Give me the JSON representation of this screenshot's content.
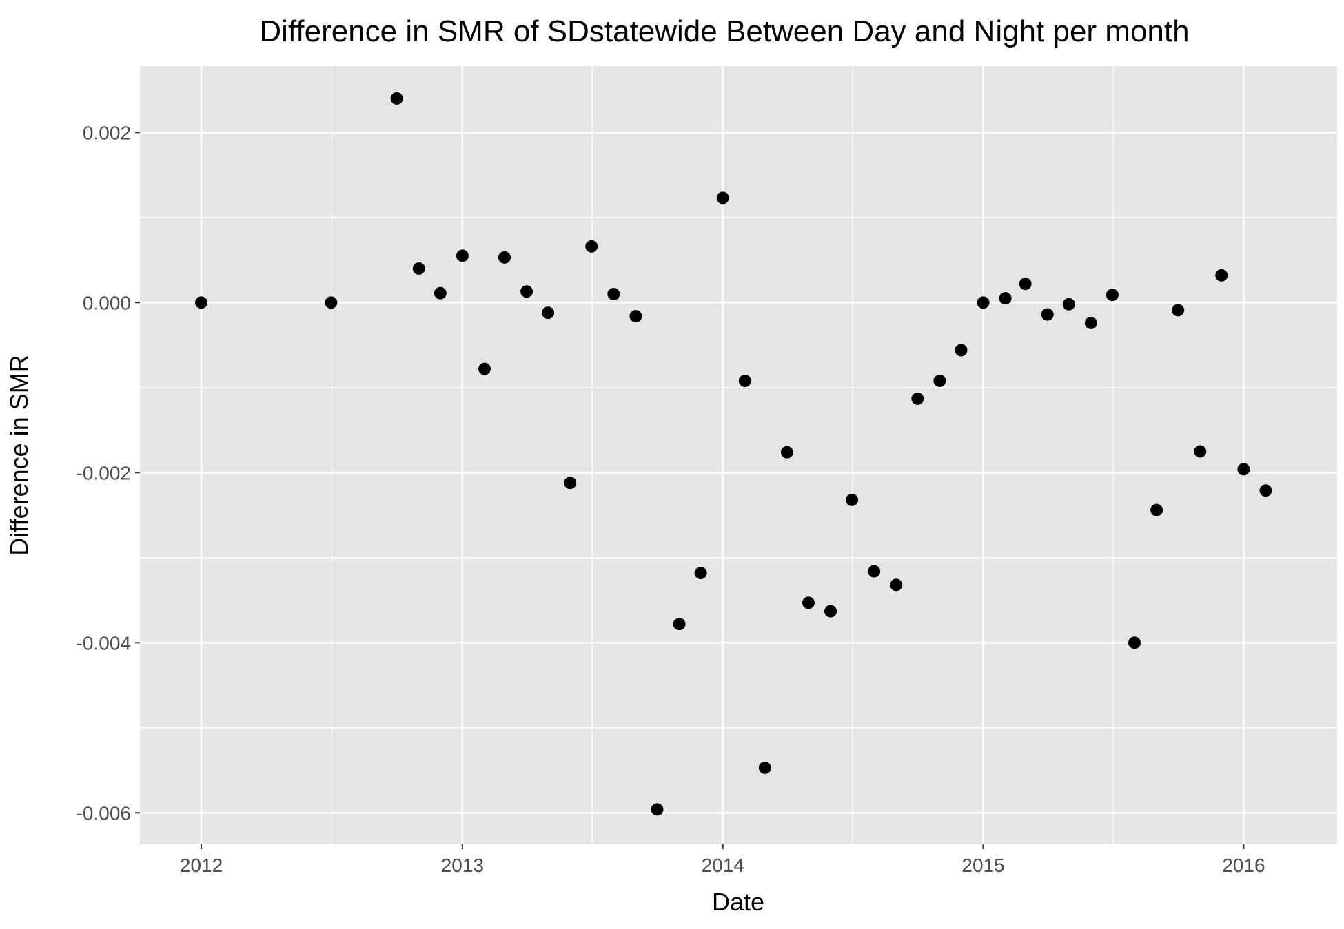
{
  "chart_data": {
    "type": "scatter",
    "title": "Difference in SMR of SDstatewide Between Day and Night per month",
    "xlabel": "Date",
    "ylabel": "Difference in SMR",
    "xlim": [
      "2011-10-07",
      "2016-05-11"
    ],
    "ylim": [
      -0.00637,
      0.00278
    ],
    "x_ticks": [
      "2012",
      "2013",
      "2014",
      "2015",
      "2016"
    ],
    "y_ticks": [
      "0.002",
      "0.000",
      "-0.002",
      "-0.004",
      "-0.006"
    ],
    "y_tick_values": [
      0.002,
      0.0,
      -0.002,
      -0.004,
      -0.006
    ],
    "grid": true,
    "legend": "none",
    "colors": {
      "panel": "#e5e5e5",
      "grid": "#ffffff",
      "point": "#000000",
      "tick_label": "#4d4d4d"
    },
    "series": [
      {
        "points": [
          {
            "x": "2012-01-01",
            "y": 0.0
          },
          {
            "x": "2012-07-01",
            "y": 0.0
          },
          {
            "x": "2012-10-01",
            "y": 0.0024
          },
          {
            "x": "2012-11-01",
            "y": 0.0004
          },
          {
            "x": "2012-12-01",
            "y": 0.00011
          },
          {
            "x": "2013-01-01",
            "y": 0.00055
          },
          {
            "x": "2013-02-01",
            "y": -0.00078
          },
          {
            "x": "2013-03-01",
            "y": 0.00053
          },
          {
            "x": "2013-04-01",
            "y": 0.00013
          },
          {
            "x": "2013-05-01",
            "y": -0.00012
          },
          {
            "x": "2013-06-01",
            "y": -0.00212
          },
          {
            "x": "2013-07-01",
            "y": 0.00066
          },
          {
            "x": "2013-08-01",
            "y": 0.0001
          },
          {
            "x": "2013-09-01",
            "y": -0.00016
          },
          {
            "x": "2013-10-01",
            "y": -0.00596
          },
          {
            "x": "2013-11-01",
            "y": -0.00378
          },
          {
            "x": "2013-12-01",
            "y": -0.00318
          },
          {
            "x": "2014-01-01",
            "y": 0.00123
          },
          {
            "x": "2014-02-01",
            "y": -0.00092
          },
          {
            "x": "2014-03-01",
            "y": -0.00547
          },
          {
            "x": "2014-04-01",
            "y": -0.00176
          },
          {
            "x": "2014-05-01",
            "y": -0.00353
          },
          {
            "x": "2014-06-01",
            "y": -0.00363
          },
          {
            "x": "2014-07-01",
            "y": -0.00232
          },
          {
            "x": "2014-08-01",
            "y": -0.00316
          },
          {
            "x": "2014-09-01",
            "y": -0.00332
          },
          {
            "x": "2014-10-01",
            "y": -0.00113
          },
          {
            "x": "2014-11-01",
            "y": -0.00092
          },
          {
            "x": "2014-12-01",
            "y": -0.00056
          },
          {
            "x": "2015-01-01",
            "y": 0.0
          },
          {
            "x": "2015-02-01",
            "y": 5e-05
          },
          {
            "x": "2015-03-01",
            "y": 0.00022
          },
          {
            "x": "2015-04-01",
            "y": -0.00014
          },
          {
            "x": "2015-05-01",
            "y": -2e-05
          },
          {
            "x": "2015-06-01",
            "y": -0.00024
          },
          {
            "x": "2015-07-01",
            "y": 9e-05
          },
          {
            "x": "2015-08-01",
            "y": -0.004
          },
          {
            "x": "2015-09-01",
            "y": -0.00244
          },
          {
            "x": "2015-10-01",
            "y": -9e-05
          },
          {
            "x": "2015-11-01",
            "y": -0.00175
          },
          {
            "x": "2015-12-01",
            "y": 0.00032
          },
          {
            "x": "2016-01-01",
            "y": -0.00196
          },
          {
            "x": "2016-02-01",
            "y": -0.00221
          }
        ]
      }
    ]
  }
}
